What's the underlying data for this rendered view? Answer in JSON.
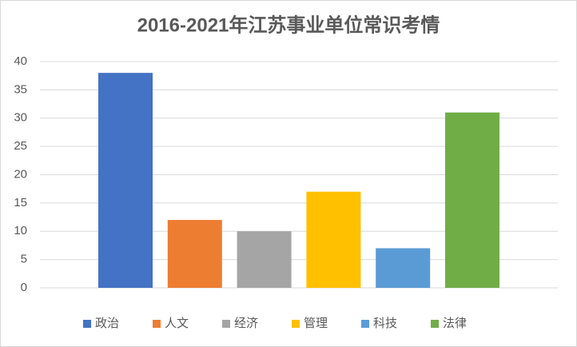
{
  "chart_data": {
    "type": "bar",
    "title": "2016-2021年江苏事业单位常识考情",
    "categories": [
      "政治",
      "人文",
      "经济",
      "管理",
      "科技",
      "法律"
    ],
    "values": [
      38,
      12,
      10,
      17,
      7,
      31
    ],
    "colors": [
      "#4472c4",
      "#ed7d31",
      "#a5a5a5",
      "#ffc000",
      "#5b9bd5",
      "#70ad47"
    ],
    "ylim": [
      0,
      40
    ],
    "yticks": [
      0,
      5,
      10,
      15,
      20,
      25,
      30,
      35,
      40
    ],
    "grid": true,
    "legend": "bottom"
  }
}
